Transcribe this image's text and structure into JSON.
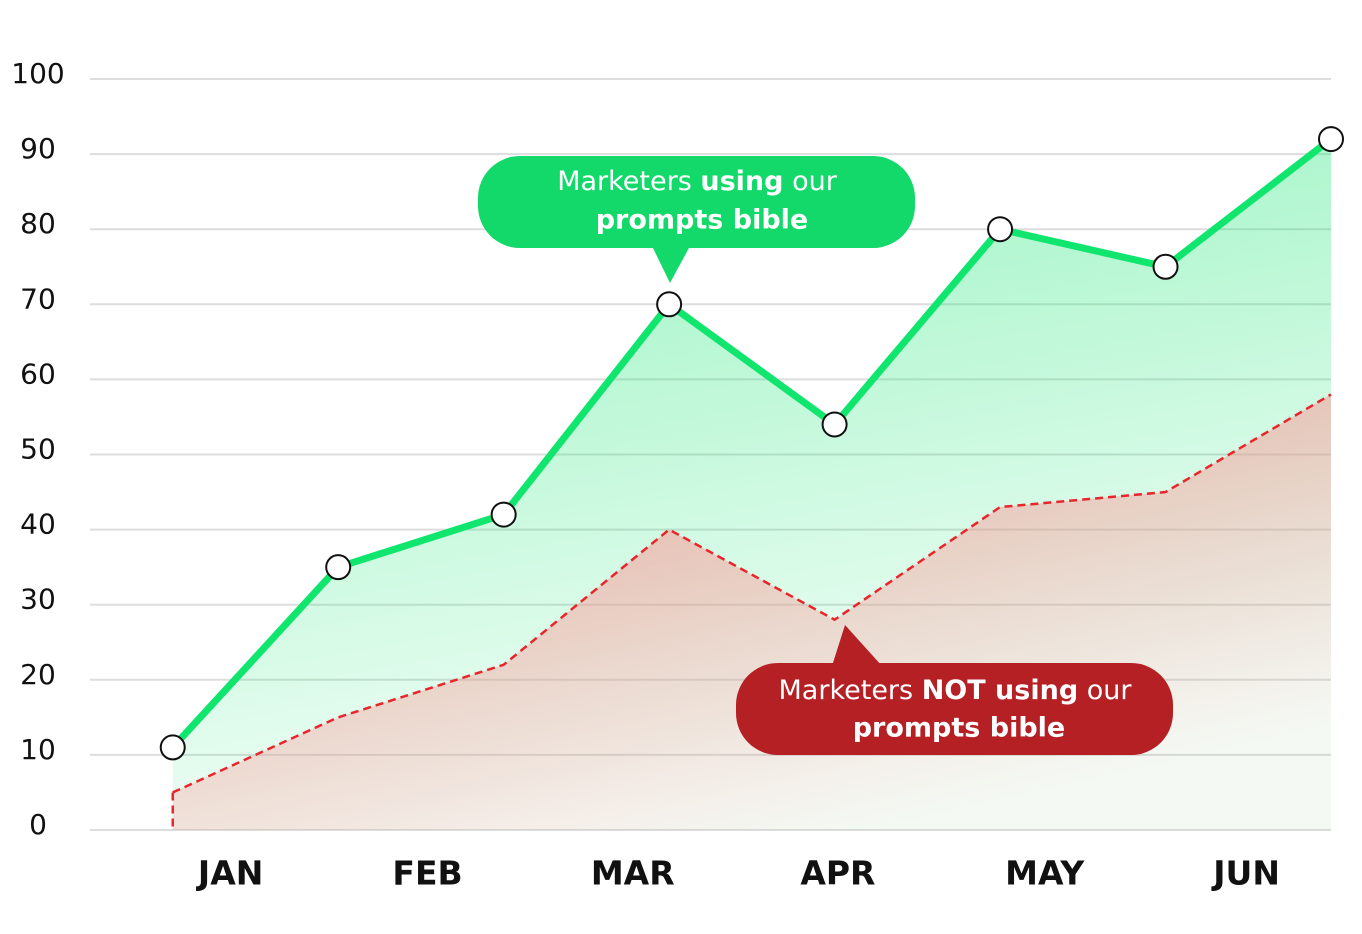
{
  "chart_data": {
    "type": "area",
    "x": [
      0,
      1,
      2,
      3,
      4,
      5,
      6,
      7
    ],
    "xlim": [
      -0.5,
      7
    ],
    "xticks": [
      {
        "value": 0.35,
        "label": "JAN"
      },
      {
        "value": 1.54,
        "label": "FEB"
      },
      {
        "value": 2.78,
        "label": "MAR"
      },
      {
        "value": 4.02,
        "label": "APR"
      },
      {
        "value": 5.27,
        "label": "MAY"
      },
      {
        "value": 6.49,
        "label": "JUN"
      }
    ],
    "ylim": [
      0,
      100
    ],
    "yticks": [
      0,
      10,
      20,
      30,
      40,
      50,
      60,
      70,
      80,
      90,
      100
    ],
    "grid": true,
    "series": [
      {
        "color": "#10e56e",
        "dashed": false,
        "markers": true,
        "values": [
          11,
          35,
          42,
          70,
          54,
          80,
          75,
          92
        ]
      },
      {
        "color": "#e8252b",
        "dashed": true,
        "markers": false,
        "values": [
          5,
          15,
          22,
          40,
          28,
          43,
          45,
          58
        ]
      }
    ],
    "annotations": [
      {
        "color": "#12d96a",
        "lines": [
          [
            "Marketers ",
            "using",
            " our"
          ],
          [
            "prompts bible"
          ]
        ]
      },
      {
        "color": "#b52025",
        "lines": [
          [
            "Marketers ",
            "NOT using",
            " our"
          ],
          [
            "prompts bible"
          ]
        ]
      }
    ]
  }
}
